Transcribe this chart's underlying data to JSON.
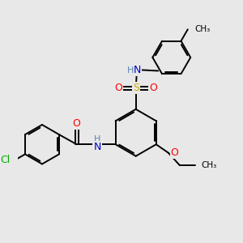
{
  "bg_color": "#e8e8e8",
  "bond_color": "#000000",
  "atom_colors": {
    "O": "#ff0000",
    "N": "#0000cd",
    "S": "#ccaa00",
    "Cl": "#00aa00",
    "H": "#5588aa",
    "C": "#000000"
  },
  "figsize": [
    3.0,
    3.0
  ],
  "dpi": 100
}
